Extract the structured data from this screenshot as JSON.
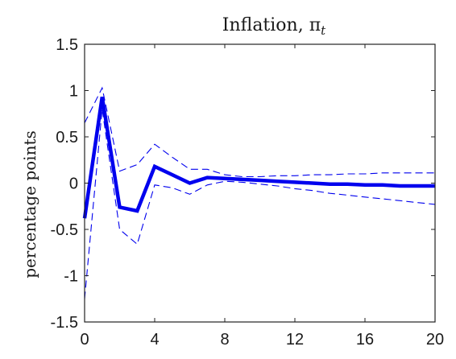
{
  "chart_data": {
    "type": "line",
    "title": "Inflation, π",
    "title_subscript": "t",
    "xlabel": "",
    "ylabel": "percentage points",
    "xlim": [
      0,
      20
    ],
    "ylim": [
      -1.5,
      1.5
    ],
    "xticks": [
      0,
      4,
      8,
      12,
      16,
      20
    ],
    "yticks": [
      -1.5,
      -1,
      -0.5,
      0,
      0.5,
      1,
      1.5
    ],
    "xtick_labels": [
      "0",
      "4",
      "8",
      "12",
      "16",
      "20"
    ],
    "ytick_labels": [
      "-1.5",
      "-1",
      "-0.5",
      "0",
      "0.5",
      "1",
      "1.5"
    ],
    "grid": false,
    "series": [
      {
        "style": "solid-thick",
        "color": "#0000ee",
        "x": [
          0,
          1,
          2,
          3,
          4,
          5,
          6,
          7,
          8,
          9,
          10,
          11,
          12,
          13,
          14,
          15,
          16,
          17,
          18,
          19,
          20
        ],
        "y": [
          -0.38,
          0.93,
          -0.26,
          -0.3,
          0.18,
          0.09,
          0.0,
          0.06,
          0.05,
          0.04,
          0.03,
          0.02,
          0.01,
          0.0,
          -0.01,
          -0.01,
          -0.02,
          -0.02,
          -0.03,
          -0.03,
          -0.03
        ]
      },
      {
        "style": "dashed-upper",
        "color": "#0000ee",
        "x": [
          0,
          1,
          2,
          3,
          4,
          5,
          6,
          7,
          8,
          9,
          10,
          11,
          12,
          13,
          14,
          15,
          16,
          17,
          18,
          19,
          20
        ],
        "y": [
          0.65,
          1.03,
          0.13,
          0.2,
          0.42,
          0.28,
          0.15,
          0.15,
          0.09,
          0.07,
          0.07,
          0.08,
          0.08,
          0.09,
          0.09,
          0.1,
          0.1,
          0.11,
          0.11,
          0.11,
          0.11
        ]
      },
      {
        "style": "dashed-lower",
        "color": "#0000ee",
        "x": [
          0,
          1,
          2,
          3,
          4,
          5,
          6,
          7,
          8,
          9,
          10,
          11,
          12,
          13,
          14,
          15,
          16,
          17,
          18,
          19,
          20
        ],
        "y": [
          -1.25,
          0.8,
          -0.5,
          -0.66,
          -0.02,
          -0.05,
          -0.12,
          -0.02,
          0.02,
          0.01,
          -0.01,
          -0.03,
          -0.06,
          -0.08,
          -0.11,
          -0.13,
          -0.15,
          -0.17,
          -0.19,
          -0.21,
          -0.23
        ]
      }
    ]
  }
}
